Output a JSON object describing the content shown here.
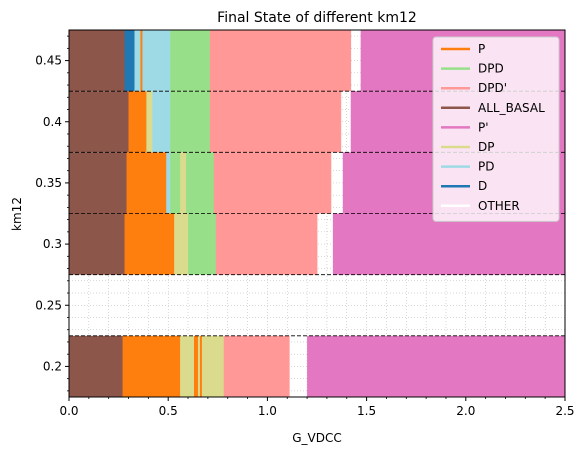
{
  "chart_data": {
    "type": "bar",
    "orientation": "horizontal-stacked-segments",
    "title": "Final State of different km12",
    "xlabel": "G_VDCC",
    "ylabel": "km12",
    "xlim": [
      0.0,
      2.5
    ],
    "ylim": [
      0.175,
      0.475
    ],
    "xticks": [
      0.0,
      0.5,
      1.0,
      1.5,
      2.0,
      2.5
    ],
    "xtick_labels": [
      "0.0",
      "0.5",
      "1.0",
      "1.5",
      "2.0",
      "2.5"
    ],
    "yticks": [
      0.2,
      0.25,
      0.3,
      0.35,
      0.4,
      0.45
    ],
    "ytick_labels": [
      "0.2",
      "0.25",
      "0.3",
      "0.35",
      "0.4",
      "0.45"
    ],
    "grid": "minor dotted grid",
    "band_separators": [
      0.225,
      0.275,
      0.325,
      0.375,
      0.425
    ],
    "legend_position": "upper-right",
    "legend": [
      "P",
      "DPD",
      "DPD'",
      "ALL_BASAL",
      "P'",
      "DP",
      "PD",
      "D",
      "OTHER"
    ],
    "state_colors": {
      "P": "#ff7f0e",
      "DPD": "#98df8a",
      "DPD'": "#ff9896",
      "ALL_BASAL": "#8c564b",
      "P'": "#e377c2",
      "DP": "#dbdb8d",
      "PD": "#9edae5",
      "D": "#1f77b4",
      "OTHER": "#ffffff"
    },
    "bands": [
      {
        "km12": 0.2,
        "y_range": [
          0.175,
          0.225
        ],
        "segments": [
          {
            "state": "ALL_BASAL",
            "x": [
              0.0,
              0.27
            ]
          },
          {
            "state": "P",
            "x": [
              0.27,
              0.56
            ]
          },
          {
            "state": "DP",
            "x": [
              0.56,
              0.63
            ]
          },
          {
            "state": "P",
            "x": [
              0.63,
              0.65
            ]
          },
          {
            "state": "DP",
            "x": [
              0.65,
              0.66
            ]
          },
          {
            "state": "P",
            "x": [
              0.66,
              0.67
            ]
          },
          {
            "state": "DP",
            "x": [
              0.67,
              0.78
            ]
          },
          {
            "state": "DPD'",
            "x": [
              0.78,
              1.11
            ]
          },
          {
            "state": "OTHER",
            "x": [
              1.11,
              1.2
            ]
          },
          {
            "state": "P'",
            "x": [
              1.2,
              2.5
            ]
          }
        ]
      },
      {
        "km12": 0.3,
        "y_range": [
          0.275,
          0.325
        ],
        "segments": [
          {
            "state": "ALL_BASAL",
            "x": [
              0.0,
              0.28
            ]
          },
          {
            "state": "P",
            "x": [
              0.28,
              0.53
            ]
          },
          {
            "state": "DP",
            "x": [
              0.53,
              0.6
            ]
          },
          {
            "state": "DPD",
            "x": [
              0.6,
              0.74
            ]
          },
          {
            "state": "DPD'",
            "x": [
              0.74,
              1.25
            ]
          },
          {
            "state": "OTHER",
            "x": [
              1.25,
              1.33
            ]
          },
          {
            "state": "P'",
            "x": [
              1.33,
              2.5
            ]
          }
        ]
      },
      {
        "km12": 0.35,
        "y_range": [
          0.325,
          0.375
        ],
        "segments": [
          {
            "state": "ALL_BASAL",
            "x": [
              0.0,
              0.29
            ]
          },
          {
            "state": "P",
            "x": [
              0.29,
              0.49
            ]
          },
          {
            "state": "PD",
            "x": [
              0.49,
              0.51
            ]
          },
          {
            "state": "DPD",
            "x": [
              0.51,
              0.56
            ]
          },
          {
            "state": "DP",
            "x": [
              0.56,
              0.59
            ]
          },
          {
            "state": "DPD",
            "x": [
              0.59,
              0.73
            ]
          },
          {
            "state": "DPD'",
            "x": [
              0.73,
              1.32
            ]
          },
          {
            "state": "OTHER",
            "x": [
              1.32,
              1.38
            ]
          },
          {
            "state": "P'",
            "x": [
              1.38,
              2.5
            ]
          }
        ]
      },
      {
        "km12": 0.4,
        "y_range": [
          0.375,
          0.425
        ],
        "segments": [
          {
            "state": "ALL_BASAL",
            "x": [
              0.0,
              0.3
            ]
          },
          {
            "state": "P",
            "x": [
              0.3,
              0.39
            ]
          },
          {
            "state": "DP",
            "x": [
              0.39,
              0.42
            ]
          },
          {
            "state": "PD",
            "x": [
              0.42,
              0.51
            ]
          },
          {
            "state": "DPD",
            "x": [
              0.51,
              0.71
            ]
          },
          {
            "state": "DPD'",
            "x": [
              0.71,
              1.37
            ]
          },
          {
            "state": "OTHER",
            "x": [
              1.37,
              1.42
            ]
          },
          {
            "state": "P'",
            "x": [
              1.42,
              2.5
            ]
          }
        ]
      },
      {
        "km12": 0.45,
        "y_range": [
          0.425,
          0.475
        ],
        "segments": [
          {
            "state": "ALL_BASAL",
            "x": [
              0.0,
              0.28
            ]
          },
          {
            "state": "D",
            "x": [
              0.28,
              0.33
            ]
          },
          {
            "state": "PD",
            "x": [
              0.33,
              0.36
            ]
          },
          {
            "state": "P",
            "x": [
              0.36,
              0.37
            ]
          },
          {
            "state": "PD",
            "x": [
              0.37,
              0.51
            ]
          },
          {
            "state": "DPD",
            "x": [
              0.51,
              0.71
            ]
          },
          {
            "state": "DPD'",
            "x": [
              0.71,
              1.42
            ]
          },
          {
            "state": "OTHER",
            "x": [
              1.42,
              1.47
            ]
          },
          {
            "state": "P'",
            "x": [
              1.47,
              2.5
            ]
          }
        ]
      }
    ]
  }
}
